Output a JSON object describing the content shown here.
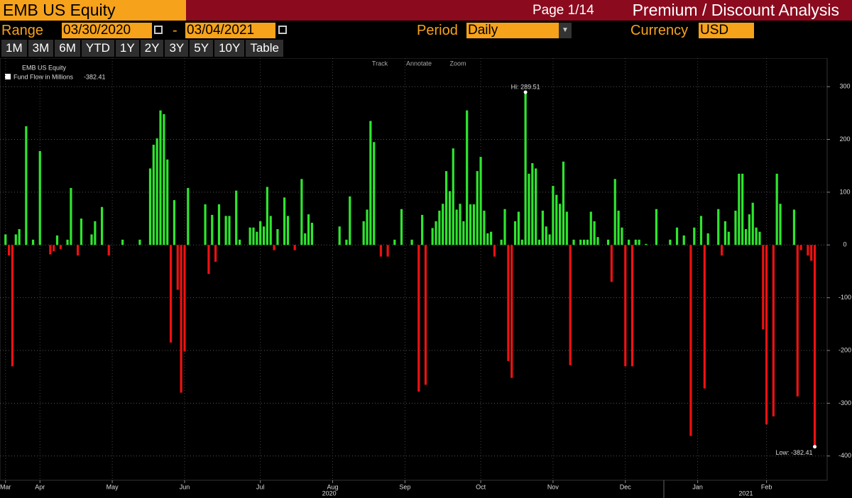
{
  "header": {
    "ticker": "EMB US Equity",
    "page": "Page 1/14",
    "screen_title": "Premium / Discount Analysis",
    "range_label": "Range",
    "range_start": "03/30/2020",
    "range_sep": "-",
    "range_end": "03/04/2021",
    "period_label": "Period",
    "period": "Daily",
    "currency_label": "Currency",
    "currency": "USD",
    "buttons": [
      "1M",
      "3M",
      "6M",
      "YTD",
      "1Y",
      "2Y",
      "3Y",
      "5Y",
      "10Y",
      "Table"
    ],
    "tools": [
      "Track",
      "Annotate",
      "Zoom"
    ]
  },
  "chart_data": {
    "type": "bar",
    "legend_title": "EMB US Equity",
    "series": [
      {
        "name": "Fund Flow in Millions",
        "color": "#2ee62e",
        "negative_color": "#ee1111",
        "x": [
          0,
          1,
          2,
          3,
          4,
          6,
          8,
          10,
          13,
          14,
          15,
          16,
          18,
          19,
          21,
          22,
          25,
          26,
          28,
          30,
          34,
          39,
          42,
          43,
          44,
          45,
          46,
          47,
          48,
          49,
          50,
          51,
          52,
          53,
          58,
          59,
          60,
          61,
          62,
          64,
          65,
          67,
          68,
          71,
          72,
          73,
          74,
          75,
          76,
          77,
          78,
          79,
          81,
          82,
          84,
          86,
          87,
          88,
          89,
          97,
          99,
          100,
          104,
          105,
          106,
          107,
          109,
          111,
          113,
          115,
          118,
          120,
          121,
          122,
          124,
          125,
          126,
          127,
          128,
          129,
          130,
          131,
          132,
          133,
          134,
          135,
          136,
          137,
          138,
          139,
          140,
          141,
          142,
          144,
          145,
          146,
          147,
          148,
          149,
          150,
          151,
          152,
          153,
          154,
          155,
          156,
          157,
          158,
          159,
          160,
          161,
          162,
          163,
          164,
          165,
          167,
          168,
          169,
          170,
          171,
          172,
          175,
          176,
          177,
          178,
          179,
          180,
          181,
          182,
          183,
          184,
          186,
          189,
          193,
          195,
          197,
          199,
          200,
          202,
          203,
          204,
          207,
          208,
          209,
          210,
          212,
          213,
          214,
          215,
          216,
          217,
          218,
          219,
          220,
          221,
          223,
          224,
          225,
          229,
          230,
          231,
          233,
          234,
          235
        ],
        "values": [
          20,
          -20,
          -230,
          20,
          30,
          225,
          10,
          178,
          -18,
          -12,
          18,
          -8,
          10,
          108,
          -20,
          50,
          20,
          45,
          72,
          -20,
          10,
          10,
          145,
          190,
          202,
          255,
          248,
          162,
          -185,
          85,
          -85,
          -280,
          -202,
          108,
          77,
          -55,
          57,
          -32,
          77,
          55,
          55,
          103,
          10,
          33,
          33,
          25,
          45,
          35,
          110,
          55,
          -10,
          30,
          90,
          55,
          -10,
          125,
          22,
          58,
          42,
          35,
          10,
          92,
          45,
          67,
          235,
          195,
          -22,
          -22,
          10,
          68,
          10,
          -278,
          57,
          -265,
          32,
          45,
          65,
          78,
          140,
          102,
          183,
          67,
          78,
          45,
          255,
          77,
          77,
          140,
          167,
          65,
          22,
          25,
          -22,
          10,
          68,
          -220,
          -252,
          45,
          63,
          10,
          289.51,
          135,
          155,
          145,
          10,
          65,
          35,
          20,
          112,
          95,
          78,
          158,
          63,
          -228,
          10,
          10,
          10,
          10,
          63,
          45,
          15,
          10,
          -70,
          125,
          65,
          33,
          -230,
          10,
          -230,
          10,
          10,
          2,
          68,
          10,
          33,
          18,
          -362,
          33,
          55,
          -272,
          22,
          68,
          -20,
          45,
          25,
          65,
          135,
          135,
          30,
          58,
          80,
          33,
          25,
          -160,
          -340,
          -325,
          135,
          78,
          67,
          -287,
          -10,
          -20,
          -30,
          -382.41
        ]
      }
    ],
    "annotations": {
      "high": "Hi: 289.51",
      "low": "Low: -382.41"
    },
    "xlim": [
      -1.6,
      238.6
    ],
    "xticks": [
      {
        "value": 0,
        "label": "Mar"
      },
      {
        "value": 10,
        "label": "Apr"
      },
      {
        "value": 31,
        "label": "May"
      },
      {
        "value": 52,
        "label": "Jun"
      },
      {
        "value": 74,
        "label": "Jul"
      },
      {
        "value": 95,
        "label": "Aug"
      },
      {
        "value": 116,
        "label": "Sep"
      },
      {
        "value": 138,
        "label": "Oct"
      },
      {
        "value": 159,
        "label": "Nov"
      },
      {
        "value": 180,
        "label": "Dec"
      },
      {
        "value": 201,
        "label": "Jan"
      },
      {
        "value": 221,
        "label": "Feb"
      }
    ],
    "year_ticks": [
      {
        "value": 94,
        "label": "2020"
      },
      {
        "value": 215,
        "label": "2021"
      }
    ],
    "ylim": [
      -446,
      354
    ],
    "yticks": [
      -400,
      -300,
      -200,
      -100,
      0,
      100,
      200,
      300
    ],
    "grid": true
  }
}
